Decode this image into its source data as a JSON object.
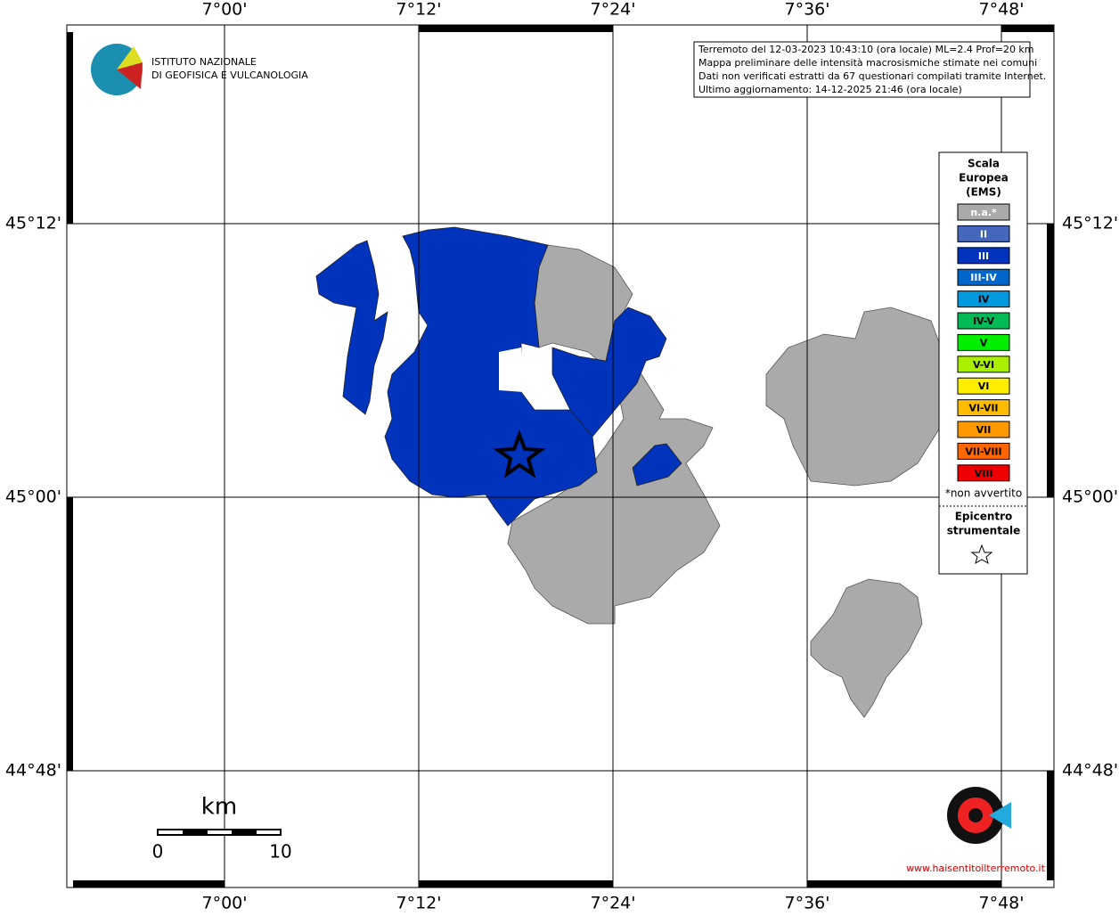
{
  "map": {
    "lon_labels": [
      "7°00'",
      "7°12'",
      "7°24'",
      "7°36'",
      "7°48'"
    ],
    "lat_labels": [
      "45°12'",
      "45°00'",
      "44°48'"
    ],
    "logo": [
      "ISTITUTO NAZIONALE",
      "DI GEOFISICA E VULCANOLOGIA"
    ],
    "info": [
      "Terremoto del 12-03-2023 10:43:10 (ora locale) ML=2.4 Prof=20 km",
      "Mappa preliminare delle intensità macrosismiche stimate nei comuni",
      "Dati non verificati estratti da 67 questionari compilati tramite Internet.",
      "Ultimo aggiornamento: 14-12-2025 21:46 (ora locale)"
    ],
    "legend": {
      "title": [
        "Scala",
        "Europea",
        "(EMS)"
      ],
      "items": [
        {
          "label": "n.a.*",
          "color": "#aaaaaa"
        },
        {
          "label": "II",
          "color": "#4466bb"
        },
        {
          "label": "III",
          "color": "#0033bb"
        },
        {
          "label": "III-IV",
          "color": "#0066cc"
        },
        {
          "label": "IV",
          "color": "#0099dd"
        },
        {
          "label": "IV-V",
          "color": "#00bb55"
        },
        {
          "label": "V",
          "color": "#00ee00"
        },
        {
          "label": "V-VI",
          "color": "#aaee00"
        },
        {
          "label": "VI",
          "color": "#ffee00"
        },
        {
          "label": "VI-VII",
          "color": "#ffbb00"
        },
        {
          "label": "VII",
          "color": "#ff9900"
        },
        {
          "label": "VII-VIII",
          "color": "#ff6600"
        },
        {
          "label": "VIII",
          "color": "#ee0000"
        }
      ],
      "note": "*non avvertito",
      "epicenter": [
        "Epicentro",
        "strumentale"
      ]
    },
    "scale_bar": {
      "unit": "km",
      "labels": [
        "0",
        "10"
      ]
    },
    "watermark": "www.haisentitoilterremoto.it"
  }
}
